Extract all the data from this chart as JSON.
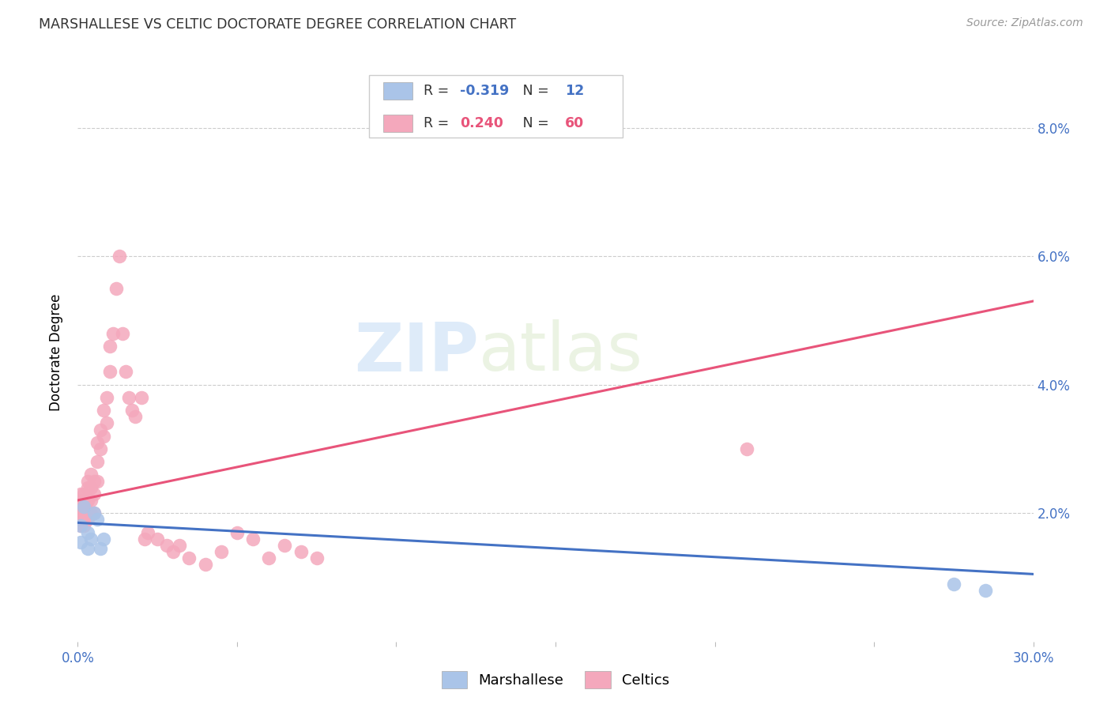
{
  "title": "MARSHALLESE VS CELTIC DOCTORATE DEGREE CORRELATION CHART",
  "source": "Source: ZipAtlas.com",
  "ylabel": "Doctorate Degree",
  "xlim": [
    0.0,
    0.3
  ],
  "ylim": [
    0.0,
    0.09
  ],
  "xtick_labels": [
    "0.0%",
    "",
    "",
    "",
    "",
    "",
    "",
    "",
    "",
    "",
    "",
    "",
    "",
    "",
    "",
    "",
    "",
    "",
    "",
    "",
    "",
    "",
    "",
    "",
    "",
    "",
    "",
    "",
    "",
    "",
    "30.0%"
  ],
  "xtick_values": [
    0.0,
    0.01,
    0.02,
    0.03,
    0.04,
    0.05,
    0.06,
    0.07,
    0.08,
    0.09,
    0.1,
    0.11,
    0.12,
    0.13,
    0.14,
    0.15,
    0.16,
    0.17,
    0.18,
    0.19,
    0.2,
    0.21,
    0.22,
    0.23,
    0.24,
    0.25,
    0.26,
    0.27,
    0.28,
    0.29,
    0.3
  ],
  "ytick_labels": [
    "2.0%",
    "4.0%",
    "6.0%",
    "8.0%"
  ],
  "ytick_values": [
    0.02,
    0.04,
    0.06,
    0.08
  ],
  "legend_r_blue": "-0.319",
  "legend_n_blue": "12",
  "legend_r_pink": "0.240",
  "legend_n_pink": "60",
  "blue_color": "#aac4e8",
  "pink_color": "#f4a8bc",
  "blue_line_color": "#4472c4",
  "pink_line_color": "#e8547a",
  "watermark_zip": "ZIP",
  "watermark_atlas": "atlas",
  "blue_scatter_x": [
    0.001,
    0.002,
    0.003,
    0.004,
    0.005,
    0.006,
    0.007,
    0.008,
    0.275,
    0.285,
    0.001,
    0.003
  ],
  "blue_scatter_y": [
    0.018,
    0.021,
    0.017,
    0.016,
    0.02,
    0.019,
    0.0145,
    0.016,
    0.009,
    0.008,
    0.0155,
    0.0145
  ],
  "pink_scatter_x": [
    0.001,
    0.001,
    0.001,
    0.001,
    0.001,
    0.001,
    0.002,
    0.002,
    0.002,
    0.002,
    0.002,
    0.002,
    0.003,
    0.003,
    0.003,
    0.003,
    0.003,
    0.004,
    0.004,
    0.004,
    0.004,
    0.005,
    0.005,
    0.005,
    0.006,
    0.006,
    0.006,
    0.007,
    0.007,
    0.008,
    0.008,
    0.009,
    0.009,
    0.01,
    0.01,
    0.011,
    0.012,
    0.013,
    0.014,
    0.015,
    0.016,
    0.017,
    0.018,
    0.02,
    0.021,
    0.022,
    0.025,
    0.028,
    0.03,
    0.032,
    0.035,
    0.04,
    0.045,
    0.05,
    0.055,
    0.06,
    0.065,
    0.07,
    0.075,
    0.21
  ],
  "pink_scatter_y": [
    0.021,
    0.02,
    0.019,
    0.022,
    0.023,
    0.018,
    0.022,
    0.021,
    0.02,
    0.019,
    0.023,
    0.018,
    0.025,
    0.022,
    0.02,
    0.024,
    0.019,
    0.026,
    0.022,
    0.02,
    0.024,
    0.025,
    0.023,
    0.02,
    0.031,
    0.028,
    0.025,
    0.033,
    0.03,
    0.036,
    0.032,
    0.038,
    0.034,
    0.046,
    0.042,
    0.048,
    0.055,
    0.06,
    0.048,
    0.042,
    0.038,
    0.036,
    0.035,
    0.038,
    0.016,
    0.017,
    0.016,
    0.015,
    0.014,
    0.015,
    0.013,
    0.012,
    0.014,
    0.017,
    0.016,
    0.013,
    0.015,
    0.014,
    0.013,
    0.03
  ],
  "blue_line_x": [
    0.0,
    0.3
  ],
  "blue_line_y": [
    0.0185,
    0.0105
  ],
  "pink_line_x": [
    0.0,
    0.3
  ],
  "pink_line_y": [
    0.022,
    0.053
  ]
}
